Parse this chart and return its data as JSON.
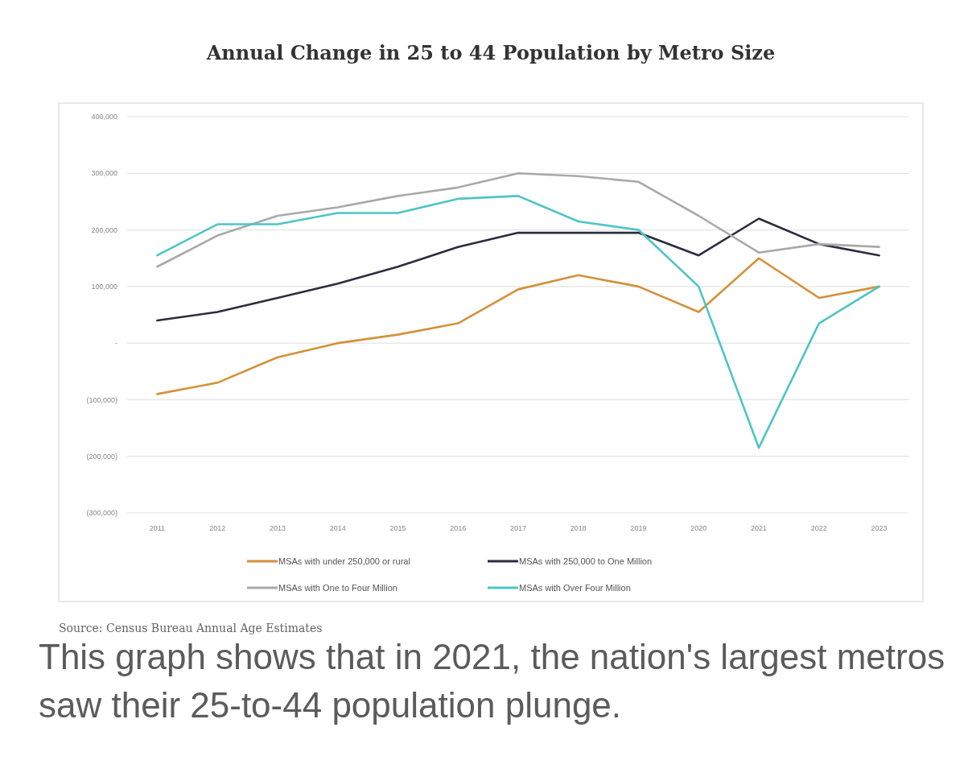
{
  "chart_data": {
    "type": "line",
    "title": "Annual Change in 25 to 44 Population by Metro Size",
    "categories": [
      "2011",
      "2012",
      "2013",
      "2014",
      "2015",
      "2016",
      "2017",
      "2018",
      "2019",
      "2020",
      "2021",
      "2022",
      "2023"
    ],
    "series": [
      {
        "name": "MSAs with under 250,000 or rural",
        "color": "#d4913a",
        "values": [
          -90000,
          -70000,
          -25000,
          0,
          15000,
          35000,
          95000,
          120000,
          100000,
          55000,
          150000,
          80000,
          100000
        ]
      },
      {
        "name": "MSAs with 250,000 to One Million",
        "color": "#2b2c40",
        "values": [
          40000,
          55000,
          80000,
          105000,
          135000,
          170000,
          195000,
          195000,
          195000,
          155000,
          220000,
          175000,
          155000
        ]
      },
      {
        "name": "MSAs with One to Four Million",
        "color": "#a9a9a9",
        "values": [
          135000,
          190000,
          225000,
          240000,
          260000,
          275000,
          300000,
          295000,
          285000,
          225000,
          160000,
          175000,
          170000
        ]
      },
      {
        "name": "MSAs with Over Four Million",
        "color": "#4ec4c6",
        "values": [
          155000,
          210000,
          210000,
          230000,
          230000,
          255000,
          260000,
          215000,
          200000,
          100000,
          -185000,
          35000,
          100000
        ]
      }
    ],
    "ylim": [
      -300000,
      400000
    ],
    "yticks": [
      {
        "value": -300000,
        "label": "(300,000)"
      },
      {
        "value": -200000,
        "label": "(200,000)"
      },
      {
        "value": -100000,
        "label": "(100,000)"
      },
      {
        "value": 0,
        "label": "-"
      },
      {
        "value": 100000,
        "label": "100,000"
      },
      {
        "value": 200000,
        "label": "200,000"
      },
      {
        "value": 300000,
        "label": "300,000"
      },
      {
        "value": 400000,
        "label": "400,000"
      }
    ],
    "grid": "y",
    "legend": "bottom",
    "annotations": [
      "Source: Census Bureau Annual Age Estimates",
      "This graph shows that in 2021, the nation's largest metros saw their 25-to-44 population plunge."
    ]
  }
}
